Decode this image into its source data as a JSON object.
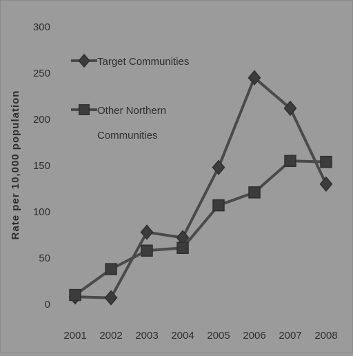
{
  "chart_data": {
    "type": "line",
    "title": "",
    "xlabel": "",
    "ylabel": "Rate per 10,000 population",
    "ylim": [
      0,
      300
    ],
    "yticks": [
      0,
      50,
      100,
      150,
      200,
      250,
      300
    ],
    "categories": [
      "2001",
      "2002",
      "2003",
      "2004",
      "2005",
      "2006",
      "2007",
      "2008"
    ],
    "grid": false,
    "legend_position": "top-left",
    "series": [
      {
        "name": "Target Communities",
        "marker": "diamond",
        "values": [
          8,
          7,
          78,
          72,
          148,
          245,
          212,
          130
        ]
      },
      {
        "name": "Other Northern Communities",
        "marker": "square",
        "values": [
          10,
          38,
          58,
          61,
          107,
          121,
          155,
          154
        ]
      }
    ],
    "legend": {
      "entries": [
        {
          "lines": [
            "Target Communities"
          ]
        },
        {
          "lines": [
            "Other Northern",
            "Communities"
          ]
        }
      ]
    }
  },
  "colors": {
    "background": "#9b9b9b",
    "line": "#4a4a4a",
    "marker": "#3c3c3c",
    "text": "#2e2e2e"
  }
}
